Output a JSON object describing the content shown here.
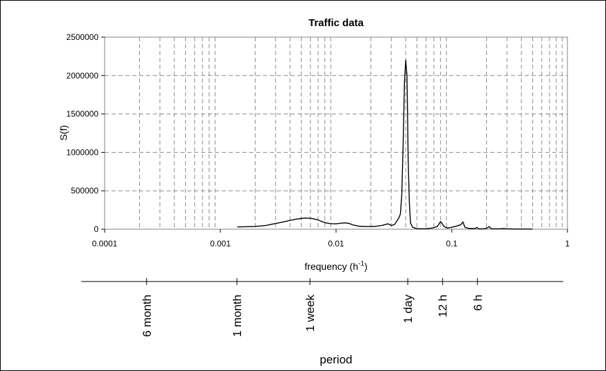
{
  "chart_data": {
    "type": "line",
    "title": "Traffic data",
    "xlabel": "frequency (h",
    "xlabel_sup": "-1",
    "xlabel_end": ")",
    "ylabel": "S(f)",
    "x_scale": "log",
    "xlim": [
      0.0001,
      1
    ],
    "ylim": [
      0,
      2500000
    ],
    "grid": {
      "vertical": "dashed",
      "horizontal": "dashed"
    },
    "y_ticks": [
      0,
      500000,
      1000000,
      1500000,
      2000000,
      2500000
    ],
    "y_tick_labels": [
      "0",
      "500000",
      "1000000",
      "1500000",
      "2000000",
      "2500000"
    ],
    "x_ticks": [
      0.0001,
      0.001,
      0.01,
      0.1,
      1
    ],
    "x_tick_labels": [
      "0.0001",
      "0.001",
      "0.01",
      "0.1",
      "1"
    ],
    "series": [
      {
        "x": [
          0.0014,
          0.002,
          0.0025,
          0.003,
          0.0035,
          0.004,
          0.0045,
          0.005,
          0.0055,
          0.006,
          0.0065,
          0.007,
          0.0075,
          0.008,
          0.009,
          0.01,
          0.011,
          0.012,
          0.013,
          0.014,
          0.016,
          0.018,
          0.02,
          0.022,
          0.025,
          0.028,
          0.03,
          0.032,
          0.034,
          0.035,
          0.036,
          0.037,
          0.038,
          0.039,
          0.04,
          0.041,
          0.0415,
          0.042,
          0.043,
          0.044,
          0.046,
          0.048,
          0.05,
          0.055,
          0.06,
          0.065,
          0.07,
          0.075,
          0.08,
          0.083,
          0.085,
          0.088,
          0.092,
          0.1,
          0.11,
          0.12,
          0.125,
          0.13,
          0.14,
          0.16,
          0.165,
          0.17,
          0.19,
          0.205,
          0.21,
          0.22,
          0.26,
          0.28,
          0.3,
          0.35,
          0.4,
          0.5
        ],
        "y": [
          30000,
          35000,
          50000,
          75000,
          95000,
          115000,
          130000,
          140000,
          145000,
          143000,
          133000,
          120000,
          102000,
          85000,
          72000,
          70000,
          78000,
          82000,
          75000,
          55000,
          38000,
          35000,
          35000,
          37000,
          50000,
          70000,
          50000,
          60000,
          120000,
          150000,
          200000,
          450000,
          1100000,
          1900000,
          2200000,
          2000000,
          1500000,
          900000,
          350000,
          80000,
          25000,
          15000,
          8000,
          5000,
          7000,
          12000,
          20000,
          35000,
          100000,
          70000,
          40000,
          25000,
          15000,
          25000,
          40000,
          60000,
          95000,
          25000,
          10000,
          8000,
          25000,
          5000,
          5000,
          20000,
          35000,
          5000,
          5000,
          8000,
          5000,
          3000,
          3000,
          2000
        ]
      }
    ],
    "period_axis": {
      "label": "period",
      "markers": [
        {
          "label": "6 month",
          "x": 0.00023
        },
        {
          "label": "1 month",
          "x": 0.00139
        },
        {
          "label": "1 week",
          "x": 0.00595
        },
        {
          "label": "1 day",
          "x": 0.04167
        },
        {
          "label": "12 h",
          "x": 0.08333
        },
        {
          "label": "6 h",
          "x": 0.16667
        }
      ]
    }
  }
}
